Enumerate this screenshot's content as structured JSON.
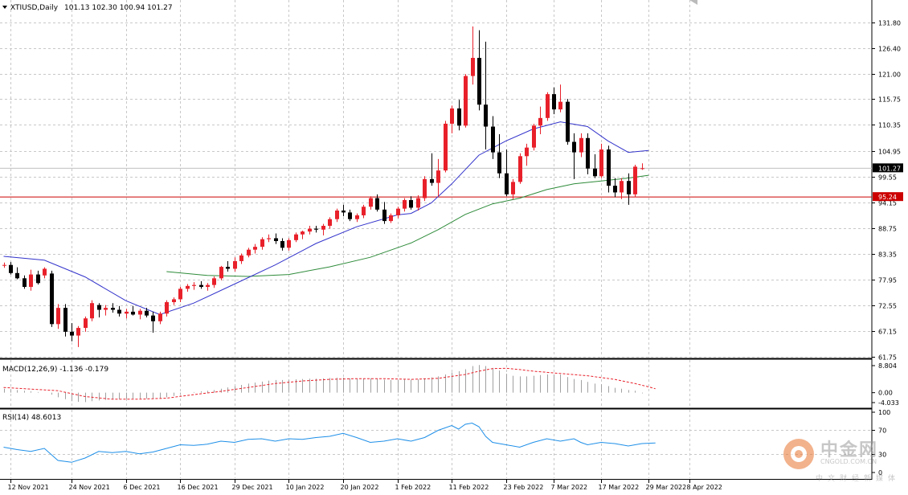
{
  "chart_data": {
    "type": "candlestick",
    "title": "XTIUSD,Daily",
    "ohlc_header": "101.13 102.30 100.94 101.27",
    "main_panel": {
      "ylim": [
        61.75,
        133.5
      ],
      "y_ticks": [
        "131.80",
        "126.40",
        "121.00",
        "115.75",
        "110.35",
        "104.95",
        "99.55",
        "94.15",
        "88.75",
        "83.35",
        "77.95",
        "72.55",
        "67.15",
        "61.75"
      ],
      "current_price": 101.27,
      "current_price_label": "101.27",
      "horizontal_line": 95.24,
      "horizontal_line_label": "95.24",
      "colors": {
        "up": "#e8202a",
        "down": "#000000",
        "ma_fast": "#3333cc",
        "ma_slow": "#2e8b3a",
        "hline": "#cc0000",
        "price_line": "#c0c0c0"
      },
      "candles": [
        [
          80.9,
          81.5,
          80.4,
          81.0
        ],
        [
          81.0,
          81.6,
          79.0,
          79.3
        ],
        [
          79.3,
          80.5,
          78.0,
          78.2
        ],
        [
          78.2,
          78.8,
          76.0,
          76.4
        ],
        [
          76.4,
          80.0,
          75.6,
          79.0
        ],
        [
          79.0,
          79.8,
          76.9,
          77.2
        ],
        [
          78.8,
          80.5,
          78.2,
          80.2
        ],
        [
          79.2,
          79.8,
          68.0,
          68.6
        ],
        [
          68.6,
          72.8,
          67.6,
          72.0
        ],
        [
          72.0,
          72.8,
          66.0,
          67.0
        ],
        [
          67.0,
          68.8,
          65.0,
          66.2
        ],
        [
          66.2,
          68.2,
          63.8,
          67.8
        ],
        [
          67.8,
          70.2,
          67.0,
          69.8
        ],
        [
          69.8,
          73.6,
          69.2,
          73.0
        ],
        [
          72.6,
          73.0,
          70.0,
          71.6
        ],
        [
          71.6,
          72.6,
          70.4,
          72.0
        ],
        [
          72.0,
          73.0,
          71.0,
          71.6
        ],
        [
          71.6,
          72.4,
          70.2,
          70.8
        ],
        [
          70.8,
          71.8,
          69.8,
          71.2
        ],
        [
          71.2,
          72.4,
          70.4,
          70.6
        ],
        [
          70.6,
          71.8,
          69.6,
          71.4
        ],
        [
          71.4,
          72.0,
          70.0,
          70.4
        ],
        [
          70.4,
          71.2,
          66.8,
          69.2
        ],
        [
          69.2,
          71.2,
          68.6,
          70.8
        ],
        [
          70.8,
          73.6,
          70.2,
          73.2
        ],
        [
          73.2,
          74.2,
          72.6,
          73.8
        ],
        [
          73.8,
          76.4,
          73.2,
          76.0
        ],
        [
          76.0,
          77.0,
          75.4,
          76.6
        ],
        [
          76.6,
          77.4,
          75.8,
          76.8
        ],
        [
          76.8,
          77.6,
          76.0,
          76.4
        ],
        [
          76.4,
          77.2,
          75.6,
          76.8
        ],
        [
          76.8,
          78.6,
          76.2,
          78.2
        ],
        [
          78.2,
          80.8,
          77.8,
          80.6
        ],
        [
          80.6,
          81.8,
          79.6,
          80.2
        ],
        [
          80.2,
          82.6,
          79.6,
          81.8
        ],
        [
          81.8,
          83.4,
          81.2,
          83.0
        ],
        [
          83.0,
          84.6,
          82.6,
          84.2
        ],
        [
          84.2,
          85.4,
          83.4,
          84.8
        ],
        [
          84.8,
          86.8,
          84.2,
          86.4
        ],
        [
          86.4,
          87.4,
          85.8,
          86.6
        ],
        [
          86.6,
          87.6,
          85.4,
          86.0
        ],
        [
          86.0,
          86.6,
          84.0,
          84.6
        ],
        [
          84.6,
          86.6,
          84.0,
          86.2
        ],
        [
          86.2,
          87.8,
          85.8,
          87.4
        ],
        [
          87.4,
          88.2,
          86.4,
          88.0
        ],
        [
          88.0,
          89.2,
          87.4,
          88.6
        ],
        [
          88.6,
          89.2,
          87.8,
          88.4
        ],
        [
          88.4,
          89.6,
          87.2,
          89.2
        ],
        [
          89.2,
          91.0,
          88.6,
          90.6
        ],
        [
          90.6,
          92.8,
          90.0,
          92.4
        ],
        [
          92.4,
          93.6,
          91.2,
          92.0
        ],
        [
          92.0,
          92.6,
          90.2,
          90.6
        ],
        [
          90.6,
          91.8,
          90.0,
          91.4
        ],
        [
          91.4,
          93.6,
          90.8,
          93.2
        ],
        [
          93.2,
          95.4,
          92.6,
          95.0
        ],
        [
          95.0,
          95.8,
          92.2,
          92.6
        ],
        [
          92.6,
          94.2,
          89.6,
          90.2
        ],
        [
          90.2,
          91.8,
          89.8,
          91.4
        ],
        [
          91.4,
          93.2,
          90.8,
          92.8
        ],
        [
          92.8,
          95.0,
          92.2,
          94.6
        ],
        [
          94.6,
          95.4,
          92.6,
          93.0
        ],
        [
          93.0,
          95.6,
          92.4,
          95.0
        ],
        [
          95.0,
          99.6,
          94.4,
          99.0
        ],
        [
          99.0,
          104.4,
          97.6,
          98.2
        ],
        [
          98.2,
          103.2,
          95.4,
          100.8
        ],
        [
          100.8,
          111.2,
          100.4,
          110.6
        ],
        [
          110.6,
          114.4,
          108.6,
          113.8
        ],
        [
          113.8,
          115.6,
          109.2,
          110.2
        ],
        [
          110.2,
          121.0,
          109.8,
          120.6
        ],
        [
          120.6,
          131.0,
          118.8,
          124.4
        ],
        [
          124.4,
          130.2,
          113.4,
          114.6
        ],
        [
          114.6,
          127.8,
          105.2,
          110.0
        ],
        [
          110.0,
          112.2,
          103.2,
          104.6
        ],
        [
          104.6,
          108.4,
          99.2,
          100.2
        ],
        [
          100.2,
          105.2,
          95.4,
          95.8
        ],
        [
          95.8,
          99.0,
          94.8,
          98.4
        ],
        [
          98.4,
          104.4,
          98.0,
          103.8
        ],
        [
          103.8,
          106.4,
          101.8,
          105.6
        ],
        [
          105.6,
          110.6,
          105.0,
          110.2
        ],
        [
          110.2,
          114.2,
          108.4,
          111.8
        ],
        [
          111.8,
          117.2,
          111.2,
          116.8
        ],
        [
          116.8,
          118.2,
          112.6,
          113.6
        ],
        [
          113.6,
          118.8,
          113.0,
          115.2
        ],
        [
          115.2,
          115.8,
          106.2,
          106.8
        ],
        [
          106.8,
          108.6,
          99.0,
          104.6
        ],
        [
          104.6,
          108.6,
          103.6,
          107.6
        ],
        [
          107.6,
          108.6,
          100.0,
          101.2
        ],
        [
          101.2,
          104.2,
          99.2,
          99.6
        ],
        [
          99.6,
          106.4,
          99.2,
          105.2
        ],
        [
          105.2,
          106.0,
          96.2,
          97.6
        ],
        [
          97.6,
          99.2,
          95.2,
          96.2
        ],
        [
          96.2,
          99.2,
          94.8,
          98.6
        ],
        [
          98.6,
          100.2,
          93.6,
          95.8
        ],
        [
          95.8,
          102.0,
          95.2,
          101.6
        ],
        [
          101.13,
          102.3,
          100.94,
          101.27
        ]
      ],
      "ma_fast": [
        [
          0,
          82.8
        ],
        [
          6,
          82.0
        ],
        [
          12,
          78.5
        ],
        [
          18,
          73.5
        ],
        [
          23,
          70.6
        ],
        [
          28,
          73.0
        ],
        [
          34,
          77.0
        ],
        [
          40,
          81.0
        ],
        [
          46,
          85.5
        ],
        [
          52,
          89.0
        ],
        [
          58,
          91.5
        ],
        [
          60,
          91.8
        ],
        [
          63,
          94.0
        ],
        [
          66,
          98.0
        ],
        [
          70,
          104.0
        ],
        [
          74,
          107.0
        ],
        [
          78,
          109.5
        ],
        [
          82,
          111.0
        ],
        [
          86,
          110.0
        ],
        [
          89,
          107.0
        ],
        [
          92,
          104.6
        ],
        [
          95,
          105.0
        ]
      ],
      "ma_slow": [
        [
          24,
          79.6
        ],
        [
          30,
          78.8
        ],
        [
          36,
          78.6
        ],
        [
          42,
          79.0
        ],
        [
          48,
          80.6
        ],
        [
          54,
          82.6
        ],
        [
          60,
          85.6
        ],
        [
          64,
          88.4
        ],
        [
          68,
          91.6
        ],
        [
          72,
          93.8
        ],
        [
          76,
          95.0
        ],
        [
          80,
          96.8
        ],
        [
          84,
          98.0
        ],
        [
          88,
          98.6
        ],
        [
          92,
          99.2
        ],
        [
          95,
          99.8
        ]
      ]
    },
    "macd_panel": {
      "label": "MACD(12,26,9) -1.136 -0.179",
      "ylim": [
        -4.033,
        8.804
      ],
      "y_ticks": [
        "8.804",
        "0.00",
        "-4.033"
      ],
      "colors": {
        "histogram": "#a0a0a0",
        "signal": "#e8202a"
      },
      "histogram": [
        1.2,
        1.0,
        0.8,
        0.6,
        0.4,
        0.2,
        0.0,
        -0.6,
        -1.4,
        -2.0,
        -2.6,
        -2.8,
        -2.9,
        -2.6,
        -2.4,
        -2.2,
        -2.1,
        -2.0,
        -1.9,
        -1.8,
        -1.8,
        -1.8,
        -1.9,
        -1.8,
        -1.4,
        -1.0,
        -0.4,
        0.0,
        0.2,
        0.4,
        0.6,
        0.8,
        1.2,
        1.6,
        2.0,
        2.4,
        2.8,
        3.1,
        3.4,
        3.7,
        3.9,
        3.9,
        4.0,
        4.1,
        4.2,
        4.3,
        4.3,
        4.4,
        4.5,
        4.6,
        4.6,
        4.4,
        4.3,
        4.3,
        4.4,
        4.3,
        4.0,
        3.9,
        3.9,
        4.0,
        4.0,
        4.1,
        4.4,
        4.7,
        5.0,
        5.6,
        6.2,
        6.6,
        7.2,
        8.2,
        8.5,
        8.2,
        7.6,
        6.8,
        5.8,
        5.2,
        5.0,
        5.0,
        5.2,
        5.4,
        5.6,
        5.6,
        5.6,
        4.8,
        4.2,
        3.9,
        3.3,
        2.8,
        2.6,
        2.0,
        1.5,
        1.2,
        0.8,
        0.6,
        -0.2
      ],
      "signal": [
        [
          0,
          1.6
        ],
        [
          8,
          0.6
        ],
        [
          12,
          -1.2
        ],
        [
          16,
          -2.0
        ],
        [
          20,
          -2.0
        ],
        [
          24,
          -1.7
        ],
        [
          28,
          -0.6
        ],
        [
          32,
          0.4
        ],
        [
          36,
          1.6
        ],
        [
          40,
          2.8
        ],
        [
          44,
          3.6
        ],
        [
          48,
          4.1
        ],
        [
          52,
          4.3
        ],
        [
          56,
          4.3
        ],
        [
          60,
          4.1
        ],
        [
          64,
          4.4
        ],
        [
          68,
          5.6
        ],
        [
          70,
          6.6
        ],
        [
          72,
          7.4
        ],
        [
          74,
          7.5
        ],
        [
          76,
          7.1
        ],
        [
          78,
          6.6
        ],
        [
          82,
          5.9
        ],
        [
          86,
          5.2
        ],
        [
          90,
          4.1
        ],
        [
          93,
          2.8
        ],
        [
          95,
          1.8
        ],
        [
          96,
          1.2
        ]
      ]
    },
    "rsi_panel": {
      "label": "RSI(14) 48.6013",
      "ylim": [
        0,
        100
      ],
      "y_ticks": [
        "100",
        "70",
        "30",
        "0"
      ],
      "colors": {
        "line": "#1e8fe8"
      },
      "values": [
        [
          0,
          42
        ],
        [
          2,
          38
        ],
        [
          4,
          35
        ],
        [
          6,
          40
        ],
        [
          8,
          20
        ],
        [
          10,
          17
        ],
        [
          12,
          24
        ],
        [
          14,
          35
        ],
        [
          16,
          33
        ],
        [
          18,
          35
        ],
        [
          20,
          31
        ],
        [
          22,
          34
        ],
        [
          24,
          40
        ],
        [
          26,
          46
        ],
        [
          28,
          45
        ],
        [
          30,
          47
        ],
        [
          32,
          52
        ],
        [
          34,
          50
        ],
        [
          36,
          55
        ],
        [
          38,
          56
        ],
        [
          40,
          52
        ],
        [
          42,
          56
        ],
        [
          44,
          55
        ],
        [
          46,
          58
        ],
        [
          48,
          60
        ],
        [
          50,
          65
        ],
        [
          52,
          58
        ],
        [
          54,
          50
        ],
        [
          56,
          52
        ],
        [
          58,
          56
        ],
        [
          60,
          52
        ],
        [
          62,
          58
        ],
        [
          64,
          70
        ],
        [
          66,
          78
        ],
        [
          67,
          72
        ],
        [
          68,
          80
        ],
        [
          69,
          82
        ],
        [
          70,
          76
        ],
        [
          71,
          60
        ],
        [
          72,
          50
        ],
        [
          74,
          46
        ],
        [
          76,
          42
        ],
        [
          78,
          50
        ],
        [
          80,
          56
        ],
        [
          82,
          52
        ],
        [
          84,
          56
        ],
        [
          85,
          50
        ],
        [
          86,
          46
        ],
        [
          88,
          50
        ],
        [
          90,
          48
        ],
        [
          92,
          44
        ],
        [
          94,
          48
        ],
        [
          96,
          49
        ]
      ]
    },
    "x_tick_labels": [
      {
        "index": 1,
        "label": "12 Nov 2021"
      },
      {
        "index": 10,
        "label": "24 Nov 2021"
      },
      {
        "index": 18,
        "label": "6 Dec 2021"
      },
      {
        "index": 26,
        "label": "16 Dec 2021"
      },
      {
        "index": 34,
        "label": "29 Dec 2021"
      },
      {
        "index": 42,
        "label": "10 Jan 2022"
      },
      {
        "index": 50,
        "label": "20 Jan 2022"
      },
      {
        "index": 58,
        "label": "1 Feb 2022"
      },
      {
        "index": 66,
        "label": "11 Feb 2022"
      },
      {
        "index": 74,
        "label": "23 Feb 2022"
      },
      {
        "index": 81,
        "label": "7 Mar 2022"
      },
      {
        "index": 88,
        "label": "17 Mar 2022"
      },
      {
        "index": 95,
        "label": "29 Mar 2022"
      },
      {
        "index": 101,
        "label": "8 Apr 2022"
      }
    ]
  },
  "watermark": {
    "title": "中金网",
    "subtitle": "CNGOLD.COM.CN",
    "slogan": "中文财经新媒体"
  }
}
